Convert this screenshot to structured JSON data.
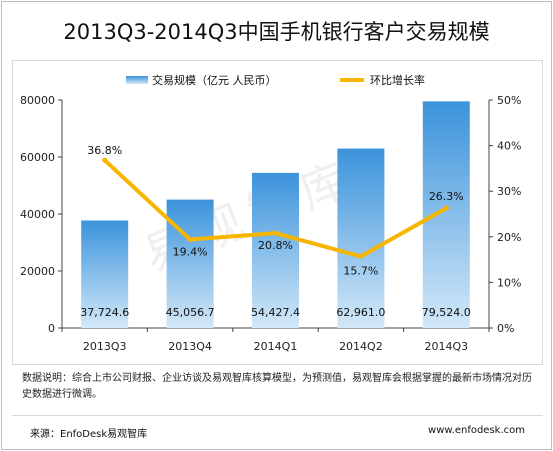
{
  "chart_data": {
    "type": "bar",
    "title": "2013Q3-2014Q3中国手机银行客户交易规模",
    "categories": [
      "2013Q3",
      "2013Q4",
      "2014Q1",
      "2014Q2",
      "2014Q3"
    ],
    "series": [
      {
        "name": "交易规模（亿元 人民币）",
        "axis": "left",
        "values": [
          37724.6,
          45056.7,
          54427.4,
          62961.0,
          79524.0
        ],
        "labels": [
          "37,724.6",
          "45,056.7",
          "54,427.4",
          "62,961.0",
          "79,524.0"
        ]
      },
      {
        "name": "环比增长率",
        "type": "line",
        "axis": "right",
        "values": [
          36.8,
          19.4,
          20.8,
          15.7,
          26.3
        ],
        "labels": [
          "36.8%",
          "19.4%",
          "20.8%",
          "15.7%",
          "26.3%"
        ]
      }
    ],
    "ylim": [
      0,
      80000
    ],
    "yticks": [
      "0",
      "20000",
      "40000",
      "60000",
      "80000"
    ],
    "y2lim": [
      0,
      50
    ],
    "y2ticks": [
      "0%",
      "10%",
      "20%",
      "30%",
      "40%",
      "50%"
    ],
    "legend": "top",
    "grid": false
  },
  "colors": {
    "bar_top": "#3b93db",
    "bar_bottom": "#d3e8f8",
    "line": "#f7b500"
  },
  "watermark": "易观智库",
  "note": "数据说明：综合上市公司财报、企业访谈及易观智库核算模型，为预测值，易观智库会根据掌握的最新市场情况对历史数据进行微调。",
  "source": "来源：EnfoDesk易观智库",
  "url": "www.enfodesk.com"
}
